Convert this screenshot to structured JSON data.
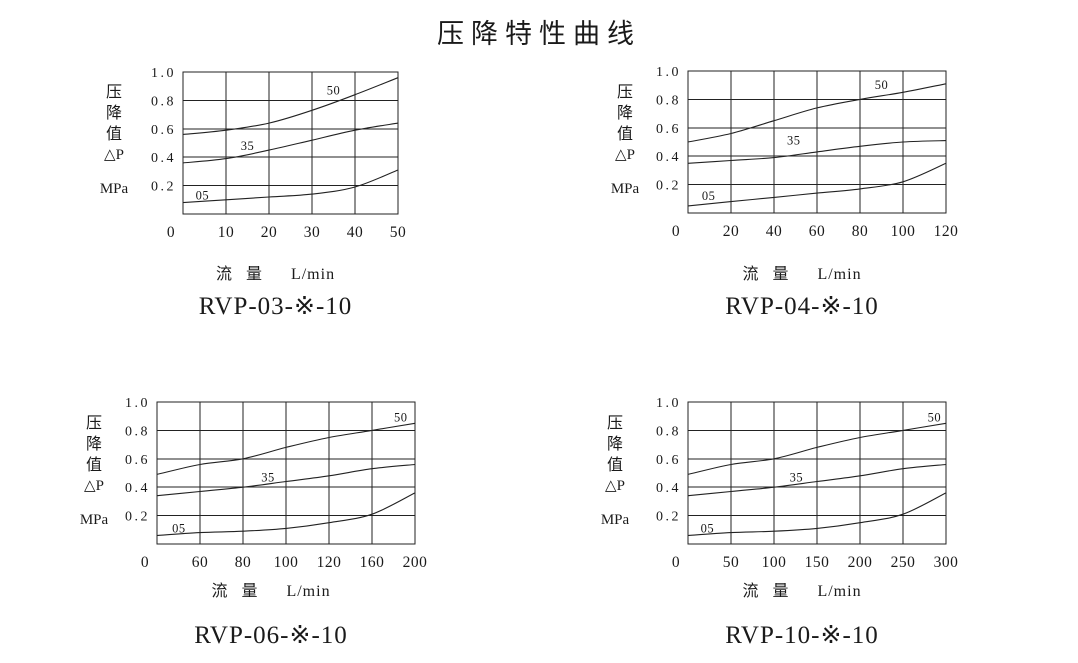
{
  "page": {
    "title": "压降特性曲线"
  },
  "shared_axes": {
    "y_title_chars": [
      "压",
      "降",
      "值",
      "△P"
    ],
    "y_unit": "MPa",
    "x_title": "流 量",
    "x_unit": "L/min"
  },
  "colors": {
    "ink": "#1a1a1a",
    "line": "#222222",
    "background": "#ffffff"
  },
  "chart_data": [
    {
      "type": "line",
      "model": "RVP-03-※-10",
      "xlabel": "流量 L/min",
      "ylabel": "压降值 △P MPa",
      "x": [
        0,
        10,
        20,
        30,
        40,
        50
      ],
      "x_ticks": [
        "0",
        "10",
        "20",
        "30",
        "40",
        "50"
      ],
      "ylim": [
        0,
        1.0
      ],
      "y_ticks": [
        "1.0",
        "0.8",
        "0.6",
        "0.4",
        "0.2"
      ],
      "grid": true,
      "series": [
        {
          "name": "50",
          "values": [
            0.56,
            0.59,
            0.64,
            0.73,
            0.84,
            0.96
          ],
          "label_at": {
            "x_frac": 0.7,
            "y": 0.87
          }
        },
        {
          "name": "35",
          "values": [
            0.36,
            0.39,
            0.45,
            0.52,
            0.59,
            0.64
          ],
          "label_at": {
            "x_frac": 0.3,
            "y": 0.48
          }
        },
        {
          "name": "05",
          "values": [
            0.08,
            0.1,
            0.12,
            0.14,
            0.19,
            0.31
          ],
          "label_at": {
            "x_frac": 0.09,
            "y": 0.13
          }
        }
      ]
    },
    {
      "type": "line",
      "model": "RVP-04-※-10",
      "xlabel": "流量 L/min",
      "ylabel": "压降值 △P MPa",
      "x": [
        0,
        20,
        40,
        60,
        80,
        100,
        120
      ],
      "x_ticks": [
        "0",
        "20",
        "40",
        "60",
        "80",
        "100",
        "120"
      ],
      "ylim": [
        0,
        1.0
      ],
      "y_ticks": [
        "1.0",
        "0.8",
        "0.6",
        "0.4",
        "0.2"
      ],
      "grid": true,
      "series": [
        {
          "name": "50",
          "values": [
            0.5,
            0.56,
            0.65,
            0.74,
            0.8,
            0.85,
            0.91
          ],
          "label_at": {
            "x_frac": 0.75,
            "y": 0.9
          }
        },
        {
          "name": "35",
          "values": [
            0.35,
            0.37,
            0.39,
            0.43,
            0.47,
            0.5,
            0.51
          ],
          "label_at": {
            "x_frac": 0.41,
            "y": 0.51
          }
        },
        {
          "name": "05",
          "values": [
            0.05,
            0.08,
            0.11,
            0.14,
            0.17,
            0.22,
            0.35
          ],
          "label_at": {
            "x_frac": 0.08,
            "y": 0.12
          }
        }
      ]
    },
    {
      "type": "line",
      "model": "RVP-06-※-10",
      "xlabel": "流量 L/min",
      "ylabel": "压降值 △P MPa",
      "x": [
        0,
        60,
        80,
        100,
        120,
        160,
        200
      ],
      "x_ticks": [
        "0",
        "60",
        "80",
        "100",
        "120",
        "160",
        "200"
      ],
      "x_tick_spacing": "uniform",
      "ylim": [
        0,
        1.0
      ],
      "y_ticks": [
        "1.0",
        "0.8",
        "0.6",
        "0.4",
        "0.2"
      ],
      "grid": true,
      "series": [
        {
          "name": "50",
          "values": [
            0.49,
            0.56,
            0.6,
            0.68,
            0.75,
            0.8,
            0.85
          ],
          "label_at": {
            "x_frac": 0.945,
            "y": 0.89
          }
        },
        {
          "name": "35",
          "values": [
            0.34,
            0.37,
            0.4,
            0.44,
            0.48,
            0.53,
            0.56
          ],
          "label_at": {
            "x_frac": 0.43,
            "y": 0.47
          }
        },
        {
          "name": "05",
          "values": [
            0.06,
            0.08,
            0.09,
            0.11,
            0.15,
            0.21,
            0.36
          ],
          "label_at": {
            "x_frac": 0.085,
            "y": 0.11
          }
        }
      ]
    },
    {
      "type": "line",
      "model": "RVP-10-※-10",
      "xlabel": "流量 L/min",
      "ylabel": "压降值 △P MPa",
      "x": [
        0,
        50,
        100,
        150,
        200,
        250,
        300
      ],
      "x_ticks": [
        "0",
        "50",
        "100",
        "150",
        "200",
        "250",
        "300"
      ],
      "ylim": [
        0,
        1.0
      ],
      "y_ticks": [
        "1.0",
        "0.8",
        "0.6",
        "0.4",
        "0.2"
      ],
      "grid": true,
      "series": [
        {
          "name": "50",
          "values": [
            0.49,
            0.56,
            0.6,
            0.68,
            0.75,
            0.8,
            0.85
          ],
          "label_at": {
            "x_frac": 0.955,
            "y": 0.89
          }
        },
        {
          "name": "35",
          "values": [
            0.34,
            0.37,
            0.4,
            0.44,
            0.48,
            0.53,
            0.56
          ],
          "label_at": {
            "x_frac": 0.42,
            "y": 0.47
          }
        },
        {
          "name": "05",
          "values": [
            0.06,
            0.08,
            0.09,
            0.11,
            0.15,
            0.21,
            0.36
          ],
          "label_at": {
            "x_frac": 0.075,
            "y": 0.11
          }
        }
      ]
    }
  ]
}
